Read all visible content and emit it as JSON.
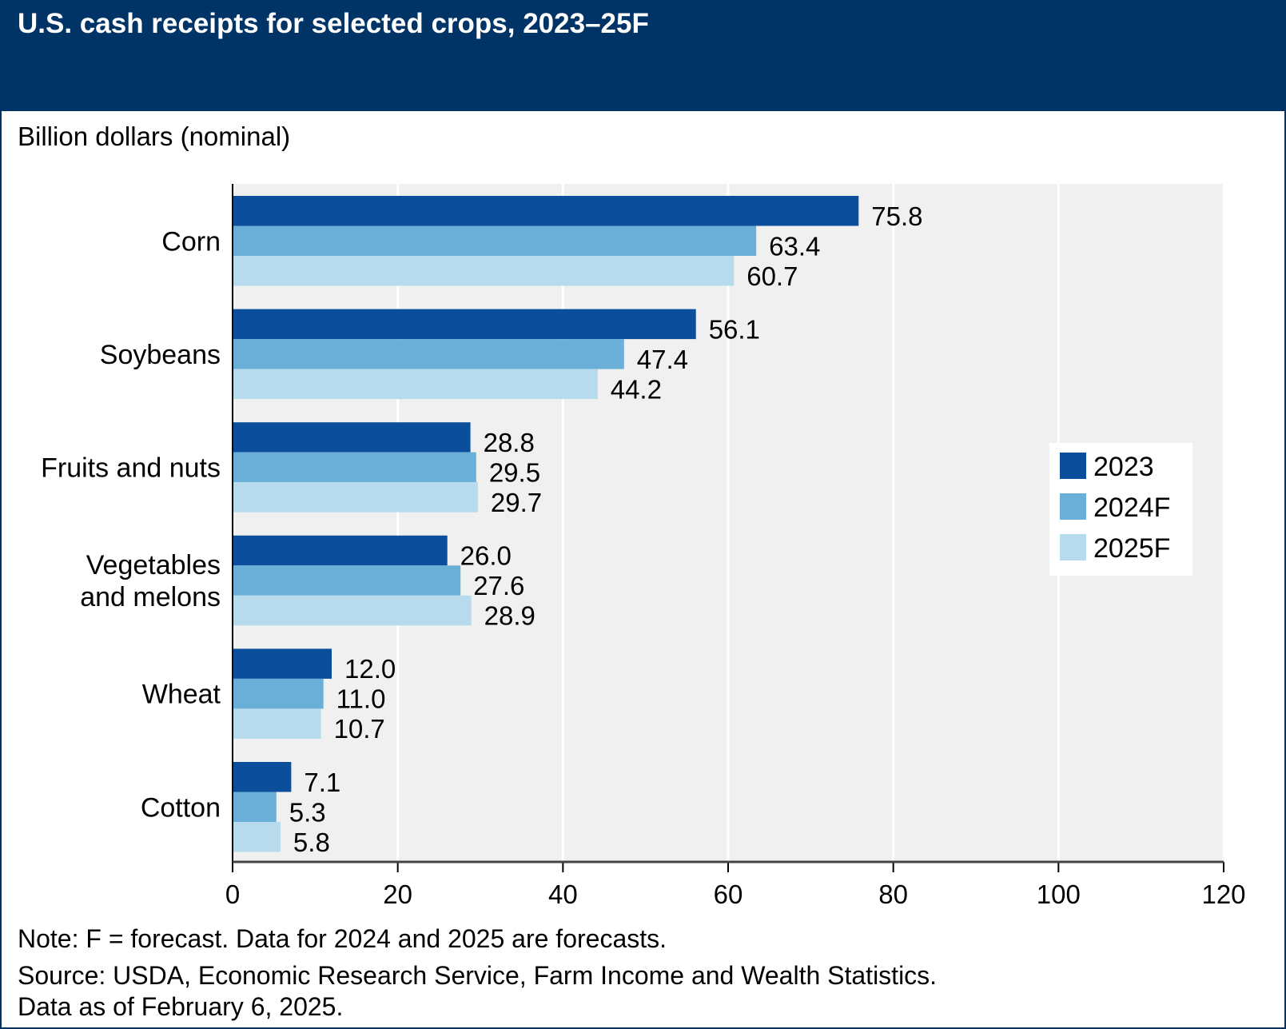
{
  "title": "U.S. cash receipts for selected crops, 2023–25F",
  "colors": {
    "header": "#003366",
    "2023": "#0b4f9c",
    "2024F": "#6aafd8",
    "2025F": "#b7dbec",
    "plot_bg": "#f0f0f0"
  },
  "chart_data": {
    "type": "bar",
    "orientation": "horizontal",
    "title": "U.S. cash receipts for selected crops, 2023–25F",
    "ylabel": "Billion dollars (nominal)",
    "categories": [
      "Corn",
      "Soybeans",
      "Fruits and nuts",
      "Vegetables and melons",
      "Wheat",
      "Cotton"
    ],
    "category_lines": [
      [
        "Corn"
      ],
      [
        "Soybeans"
      ],
      [
        "Fruits and nuts"
      ],
      [
        "Vegetables",
        "and melons"
      ],
      [
        "Wheat"
      ],
      [
        "Cotton"
      ]
    ],
    "series": [
      {
        "name": "2023",
        "values": [
          75.8,
          56.1,
          28.8,
          26.0,
          12.0,
          7.1
        ],
        "labels": [
          "75.8",
          "56.1",
          "28.8",
          "26.0",
          "12.0",
          "7.1"
        ]
      },
      {
        "name": "2024F",
        "values": [
          63.4,
          47.4,
          29.5,
          27.6,
          11.0,
          5.3
        ],
        "labels": [
          "63.4",
          "47.4",
          "29.5",
          "27.6",
          "11.0",
          "5.3"
        ]
      },
      {
        "name": "2025F",
        "values": [
          60.7,
          44.2,
          29.7,
          28.9,
          10.7,
          5.8
        ],
        "labels": [
          "60.7",
          "44.2",
          "29.7",
          "28.9",
          "10.7",
          "5.8"
        ]
      }
    ],
    "xlim": [
      0,
      120
    ],
    "xticks": [
      0,
      20,
      40,
      60,
      80,
      100,
      120
    ],
    "grid": true,
    "legend_position": "right"
  },
  "footer": {
    "note": "Note: F = forecast. Data for 2024 and 2025 are forecasts.",
    "source": "Source: USDA, Economic Research Service, Farm Income and Wealth Statistics.",
    "date": "Data as of February 6, 2025."
  }
}
